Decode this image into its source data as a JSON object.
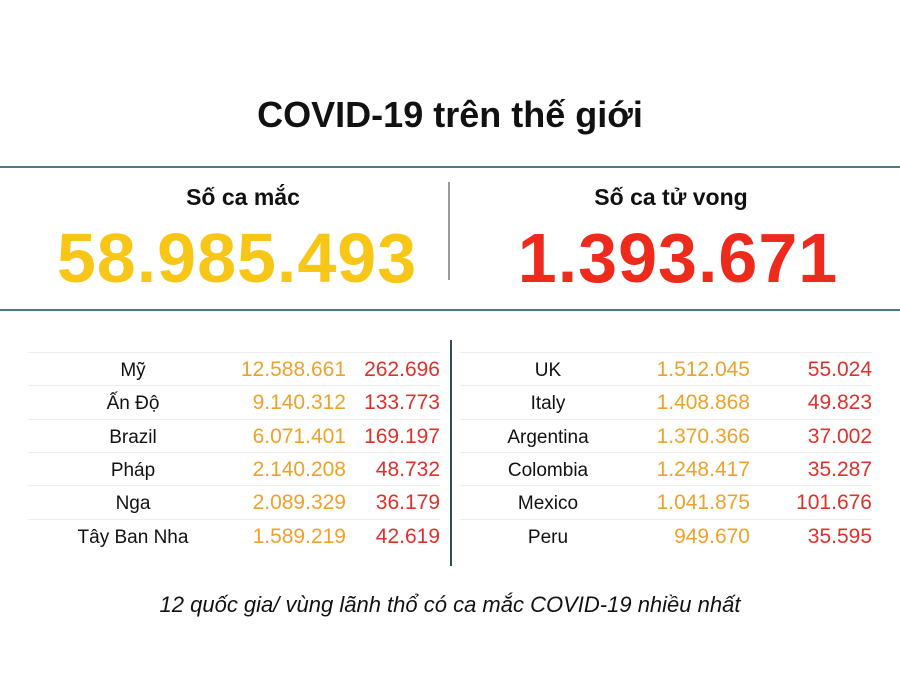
{
  "title": "COVID-19 trên thế giới",
  "summary": {
    "cases_label": "Số ca mắc",
    "cases": "58.985.493",
    "deaths_label": "Số ca tử vong",
    "deaths": "1.393.671"
  },
  "tables": [
    {
      "rows": [
        [
          "Mỹ",
          "12.588.661",
          "262.696"
        ],
        [
          "Ấn Độ",
          "9.140.312",
          "133.773"
        ],
        [
          "Brazil",
          "6.071.401",
          "169.197"
        ],
        [
          "Pháp",
          "2.140.208",
          "48.732"
        ],
        [
          "Nga",
          "2.089.329",
          "36.179"
        ],
        [
          "Tây Ban Nha",
          "1.589.219",
          "42.619"
        ]
      ]
    },
    {
      "rows": [
        [
          "UK",
          "1.512.045",
          "55.024"
        ],
        [
          "Italy",
          "1.408.868",
          "49.823"
        ],
        [
          "Argentina",
          "1.370.366",
          "37.002"
        ],
        [
          "Colombia",
          "1.248.417",
          "35.287"
        ],
        [
          "Mexico",
          "1.041.875",
          "101.676"
        ],
        [
          "Peru",
          "949.670",
          "35.595"
        ]
      ]
    }
  ],
  "note": "12 quốc gia/ vùng lãnh thổ có ca mắc COVID-19 nhiều nhất"
}
